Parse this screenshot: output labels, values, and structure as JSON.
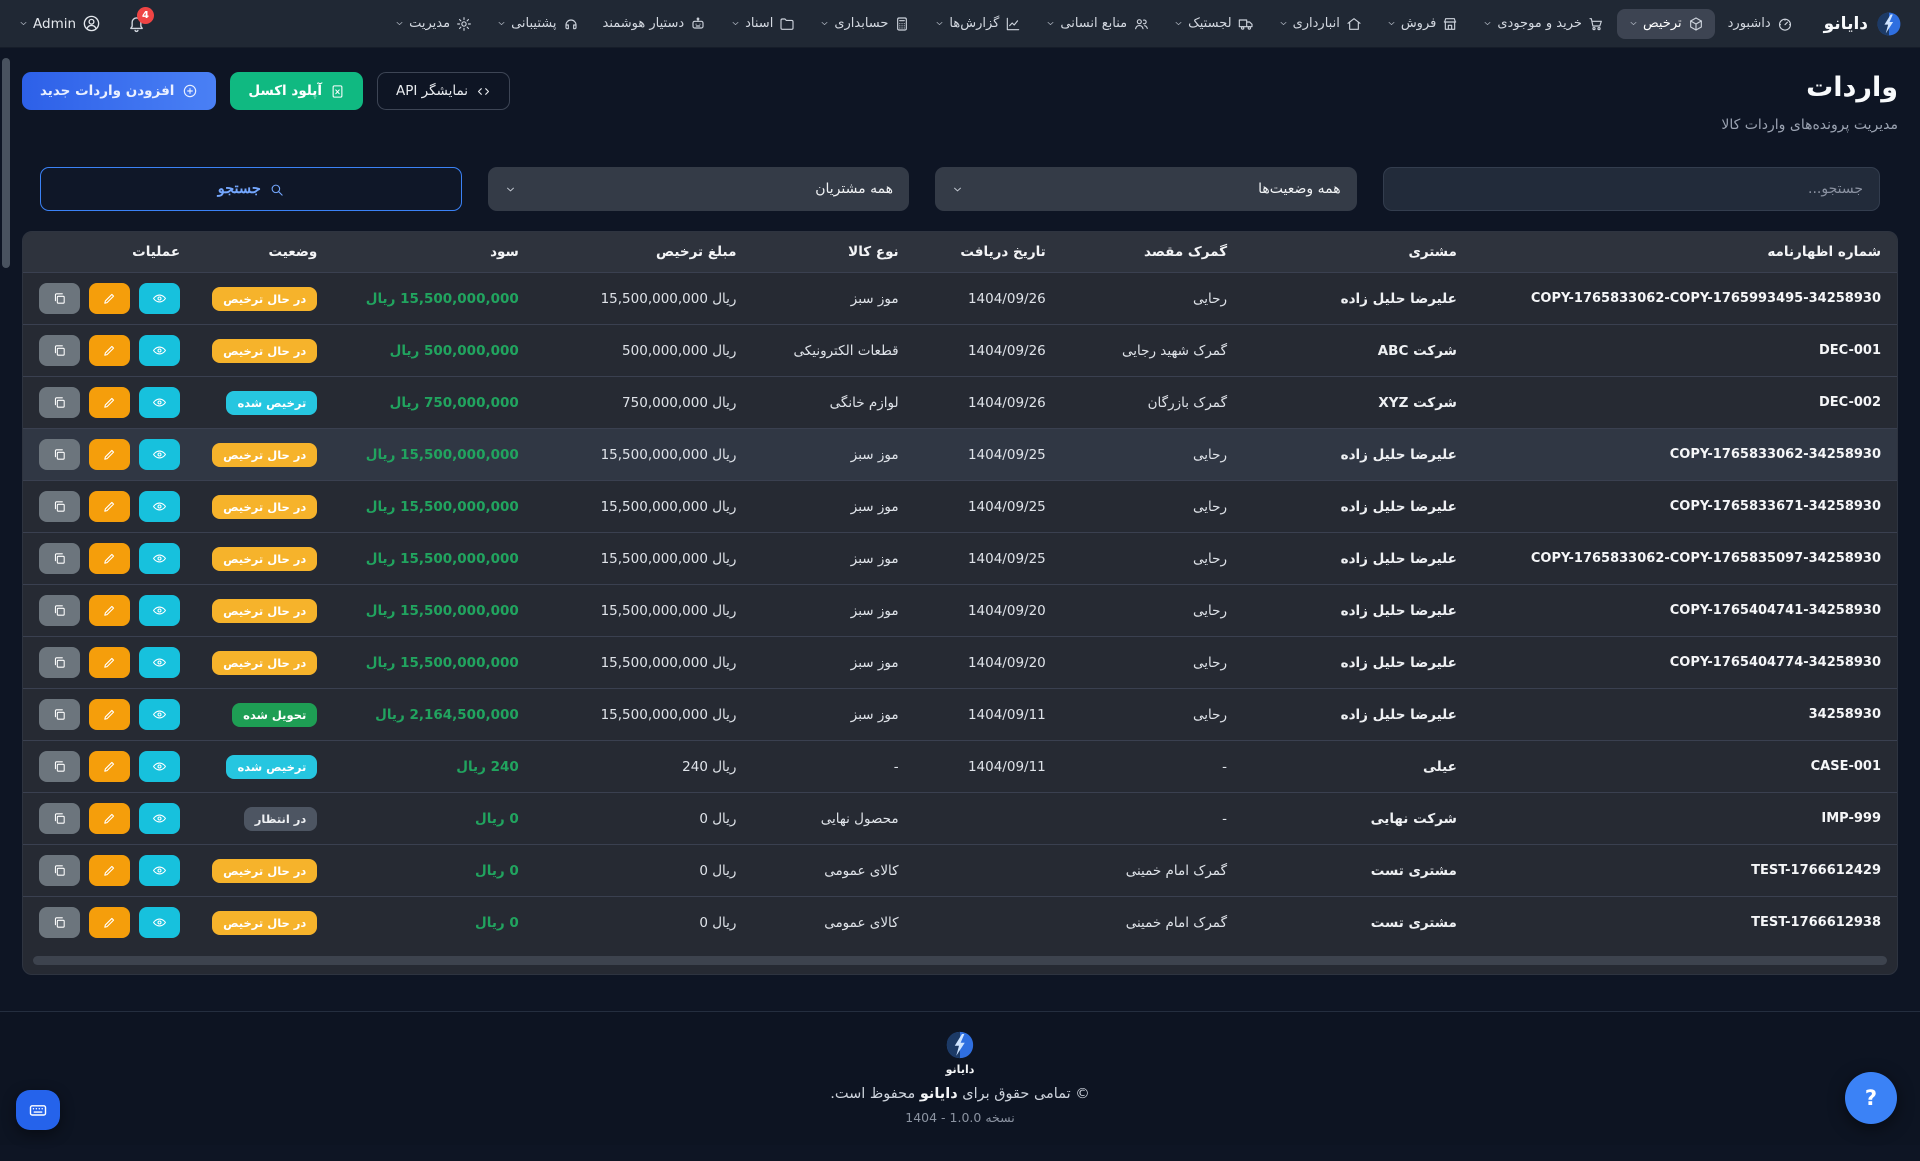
{
  "theme": {
    "bg_page": "#0e1524",
    "bg_nav": "#202834",
    "bg_card": "#262a33",
    "accent_blue": "#3b82f6",
    "button_green": "#10b981",
    "badge_warning": "#f6b32b",
    "badge_info": "#26c6e0",
    "badge_success": "#1e9e54",
    "badge_secondary": "#4d5562",
    "profit_green": "#21a45f",
    "action_view": "#17c1dd",
    "action_edit": "#f59e0b",
    "action_copy": "#6c757d",
    "danger": "#ef4444"
  },
  "navbar": {
    "brand": "دایانو",
    "items": [
      {
        "label": "داشبورد",
        "icon": "dashboard",
        "caret": false,
        "active": false
      },
      {
        "label": "ترخیص",
        "icon": "package",
        "caret": true,
        "active": true
      },
      {
        "label": "خرید و موجودی",
        "icon": "cart",
        "caret": true,
        "active": false
      },
      {
        "label": "فروش",
        "icon": "store",
        "caret": true,
        "active": false
      },
      {
        "label": "انبارداری",
        "icon": "warehouse",
        "caret": true,
        "active": false
      },
      {
        "label": "لجستیک",
        "icon": "truck",
        "caret": true,
        "active": false
      },
      {
        "label": "منابع انسانی",
        "icon": "people",
        "caret": true,
        "active": false
      },
      {
        "label": "گزارش‌ها",
        "icon": "chart",
        "caret": true,
        "active": false
      },
      {
        "label": "حسابداری",
        "icon": "calculator",
        "caret": true,
        "active": false
      },
      {
        "label": "اسناد",
        "icon": "folder",
        "caret": true,
        "active": false
      },
      {
        "label": "دستیار هوشمند",
        "icon": "robot",
        "caret": false,
        "active": false
      },
      {
        "label": "پشتیبانی",
        "icon": "headset",
        "caret": true,
        "active": false
      },
      {
        "label": "مدیریت",
        "icon": "gear",
        "caret": true,
        "active": false
      }
    ],
    "notifications": {
      "count": "4"
    },
    "user": {
      "name": "Admin"
    }
  },
  "header": {
    "title": "واردات",
    "subtitle": "مدیریت پرونده‌های واردات کالا",
    "buttons": {
      "api": "نمایشگر API",
      "excel": "آپلود اکسل",
      "add": "افزودن واردات جدید"
    }
  },
  "filters": {
    "search_placeholder": "جستجو...",
    "status_select": "همه وضعیت‌ها",
    "customer_select": "همه مشتریان",
    "search_button": "جستجو"
  },
  "table": {
    "currency": "ریال",
    "columns": [
      "شماره اظهارنامه",
      "مشتری",
      "گمرک مقصد",
      "تاریخ دریافت",
      "نوع کالا",
      "مبلغ ترخیص",
      "سود",
      "وضعیت",
      "عملیات"
    ],
    "rows": [
      {
        "id": "COPY-1765833062-COPY-1765993495-34258930",
        "customer": "علیرضا حلیل زاده",
        "customs": "رحایی",
        "date": "1404/09/26",
        "goods": "موز سبز",
        "amount": "15,500,000,000",
        "profit": "15,500,000,000",
        "status": {
          "label": "در حال ترخیص",
          "variant": "warning"
        },
        "highlight": false
      },
      {
        "id": "DEC-001",
        "customer": "شرکت ABC",
        "customs": "گمرک شهید رجایی",
        "date": "1404/09/26",
        "goods": "قطعات الکترونیکی",
        "amount": "500,000,000",
        "profit": "500,000,000",
        "status": {
          "label": "در حال ترخیص",
          "variant": "warning"
        },
        "highlight": false
      },
      {
        "id": "DEC-002",
        "customer": "شرکت XYZ",
        "customs": "گمرک بازرگان",
        "date": "1404/09/26",
        "goods": "لوازم خانگی",
        "amount": "750,000,000",
        "profit": "750,000,000",
        "status": {
          "label": "ترخیص شده",
          "variant": "info"
        },
        "highlight": false
      },
      {
        "id": "COPY-1765833062-34258930",
        "customer": "علیرضا حلیل زاده",
        "customs": "رحایی",
        "date": "1404/09/25",
        "goods": "موز سبز",
        "amount": "15,500,000,000",
        "profit": "15,500,000,000",
        "status": {
          "label": "در حال ترخیص",
          "variant": "warning"
        },
        "highlight": true
      },
      {
        "id": "COPY-1765833671-34258930",
        "customer": "علیرضا حلیل زاده",
        "customs": "رحایی",
        "date": "1404/09/25",
        "goods": "موز سبز",
        "amount": "15,500,000,000",
        "profit": "15,500,000,000",
        "status": {
          "label": "در حال ترخیص",
          "variant": "warning"
        },
        "highlight": false
      },
      {
        "id": "COPY-1765833062-COPY-1765835097-34258930",
        "customer": "علیرضا حلیل زاده",
        "customs": "رحایی",
        "date": "1404/09/25",
        "goods": "موز سبز",
        "amount": "15,500,000,000",
        "profit": "15,500,000,000",
        "status": {
          "label": "در حال ترخیص",
          "variant": "warning"
        },
        "highlight": false
      },
      {
        "id": "COPY-1765404741-34258930",
        "customer": "علیرضا حلیل زاده",
        "customs": "رحایی",
        "date": "1404/09/20",
        "goods": "موز سبز",
        "amount": "15,500,000,000",
        "profit": "15,500,000,000",
        "status": {
          "label": "در حال ترخیص",
          "variant": "warning"
        },
        "highlight": false
      },
      {
        "id": "COPY-1765404774-34258930",
        "customer": "علیرضا حلیل زاده",
        "customs": "رحایی",
        "date": "1404/09/20",
        "goods": "موز سبز",
        "amount": "15,500,000,000",
        "profit": "15,500,000,000",
        "status": {
          "label": "در حال ترخیص",
          "variant": "warning"
        },
        "highlight": false
      },
      {
        "id": "34258930",
        "customer": "علیرضا حلیل زاده",
        "customs": "رحایی",
        "date": "1404/09/11",
        "goods": "موز سبز",
        "amount": "15,500,000,000",
        "profit": "2,164,500,000",
        "status": {
          "label": "تحویل شده",
          "variant": "success"
        },
        "highlight": false
      },
      {
        "id": "CASE-001",
        "customer": "عیلی",
        "customs": "-",
        "date": "1404/09/11",
        "goods": "-",
        "amount": "240",
        "profit": "240",
        "status": {
          "label": "ترخیص شده",
          "variant": "info"
        },
        "highlight": false
      },
      {
        "id": "IMP-999",
        "customer": "شرکت نهایی",
        "customs": "-",
        "date": "",
        "goods": "محصول نهایی",
        "amount": "0",
        "profit": "0",
        "status": {
          "label": "در انتظار",
          "variant": "secondary"
        },
        "highlight": false
      },
      {
        "id": "TEST-1766612429",
        "customer": "مشتری تست",
        "customs": "گمرک امام خمینی",
        "date": "",
        "goods": "کالای عمومی",
        "amount": "0",
        "profit": "0",
        "status": {
          "label": "در حال ترخیص",
          "variant": "warning"
        },
        "highlight": false
      },
      {
        "id": "TEST-1766612938",
        "customer": "مشتری تست",
        "customs": "گمرک امام خمینی",
        "date": "",
        "goods": "کالای عمومی",
        "amount": "0",
        "profit": "0",
        "status": {
          "label": "در حال ترخیص",
          "variant": "warning"
        },
        "highlight": false
      }
    ],
    "actions": {
      "view": "مشاهده",
      "edit": "ویرایش",
      "copy": "کپی"
    }
  },
  "footer": {
    "brand": "دایانو",
    "copyright_prefix": "© تمامی حقوق برای",
    "copyright_brand": "دایانو",
    "copyright_suffix": "محفوظ است.",
    "version": "1404 - نسخه 1.0.0"
  },
  "floating": {
    "help_label": "?"
  }
}
